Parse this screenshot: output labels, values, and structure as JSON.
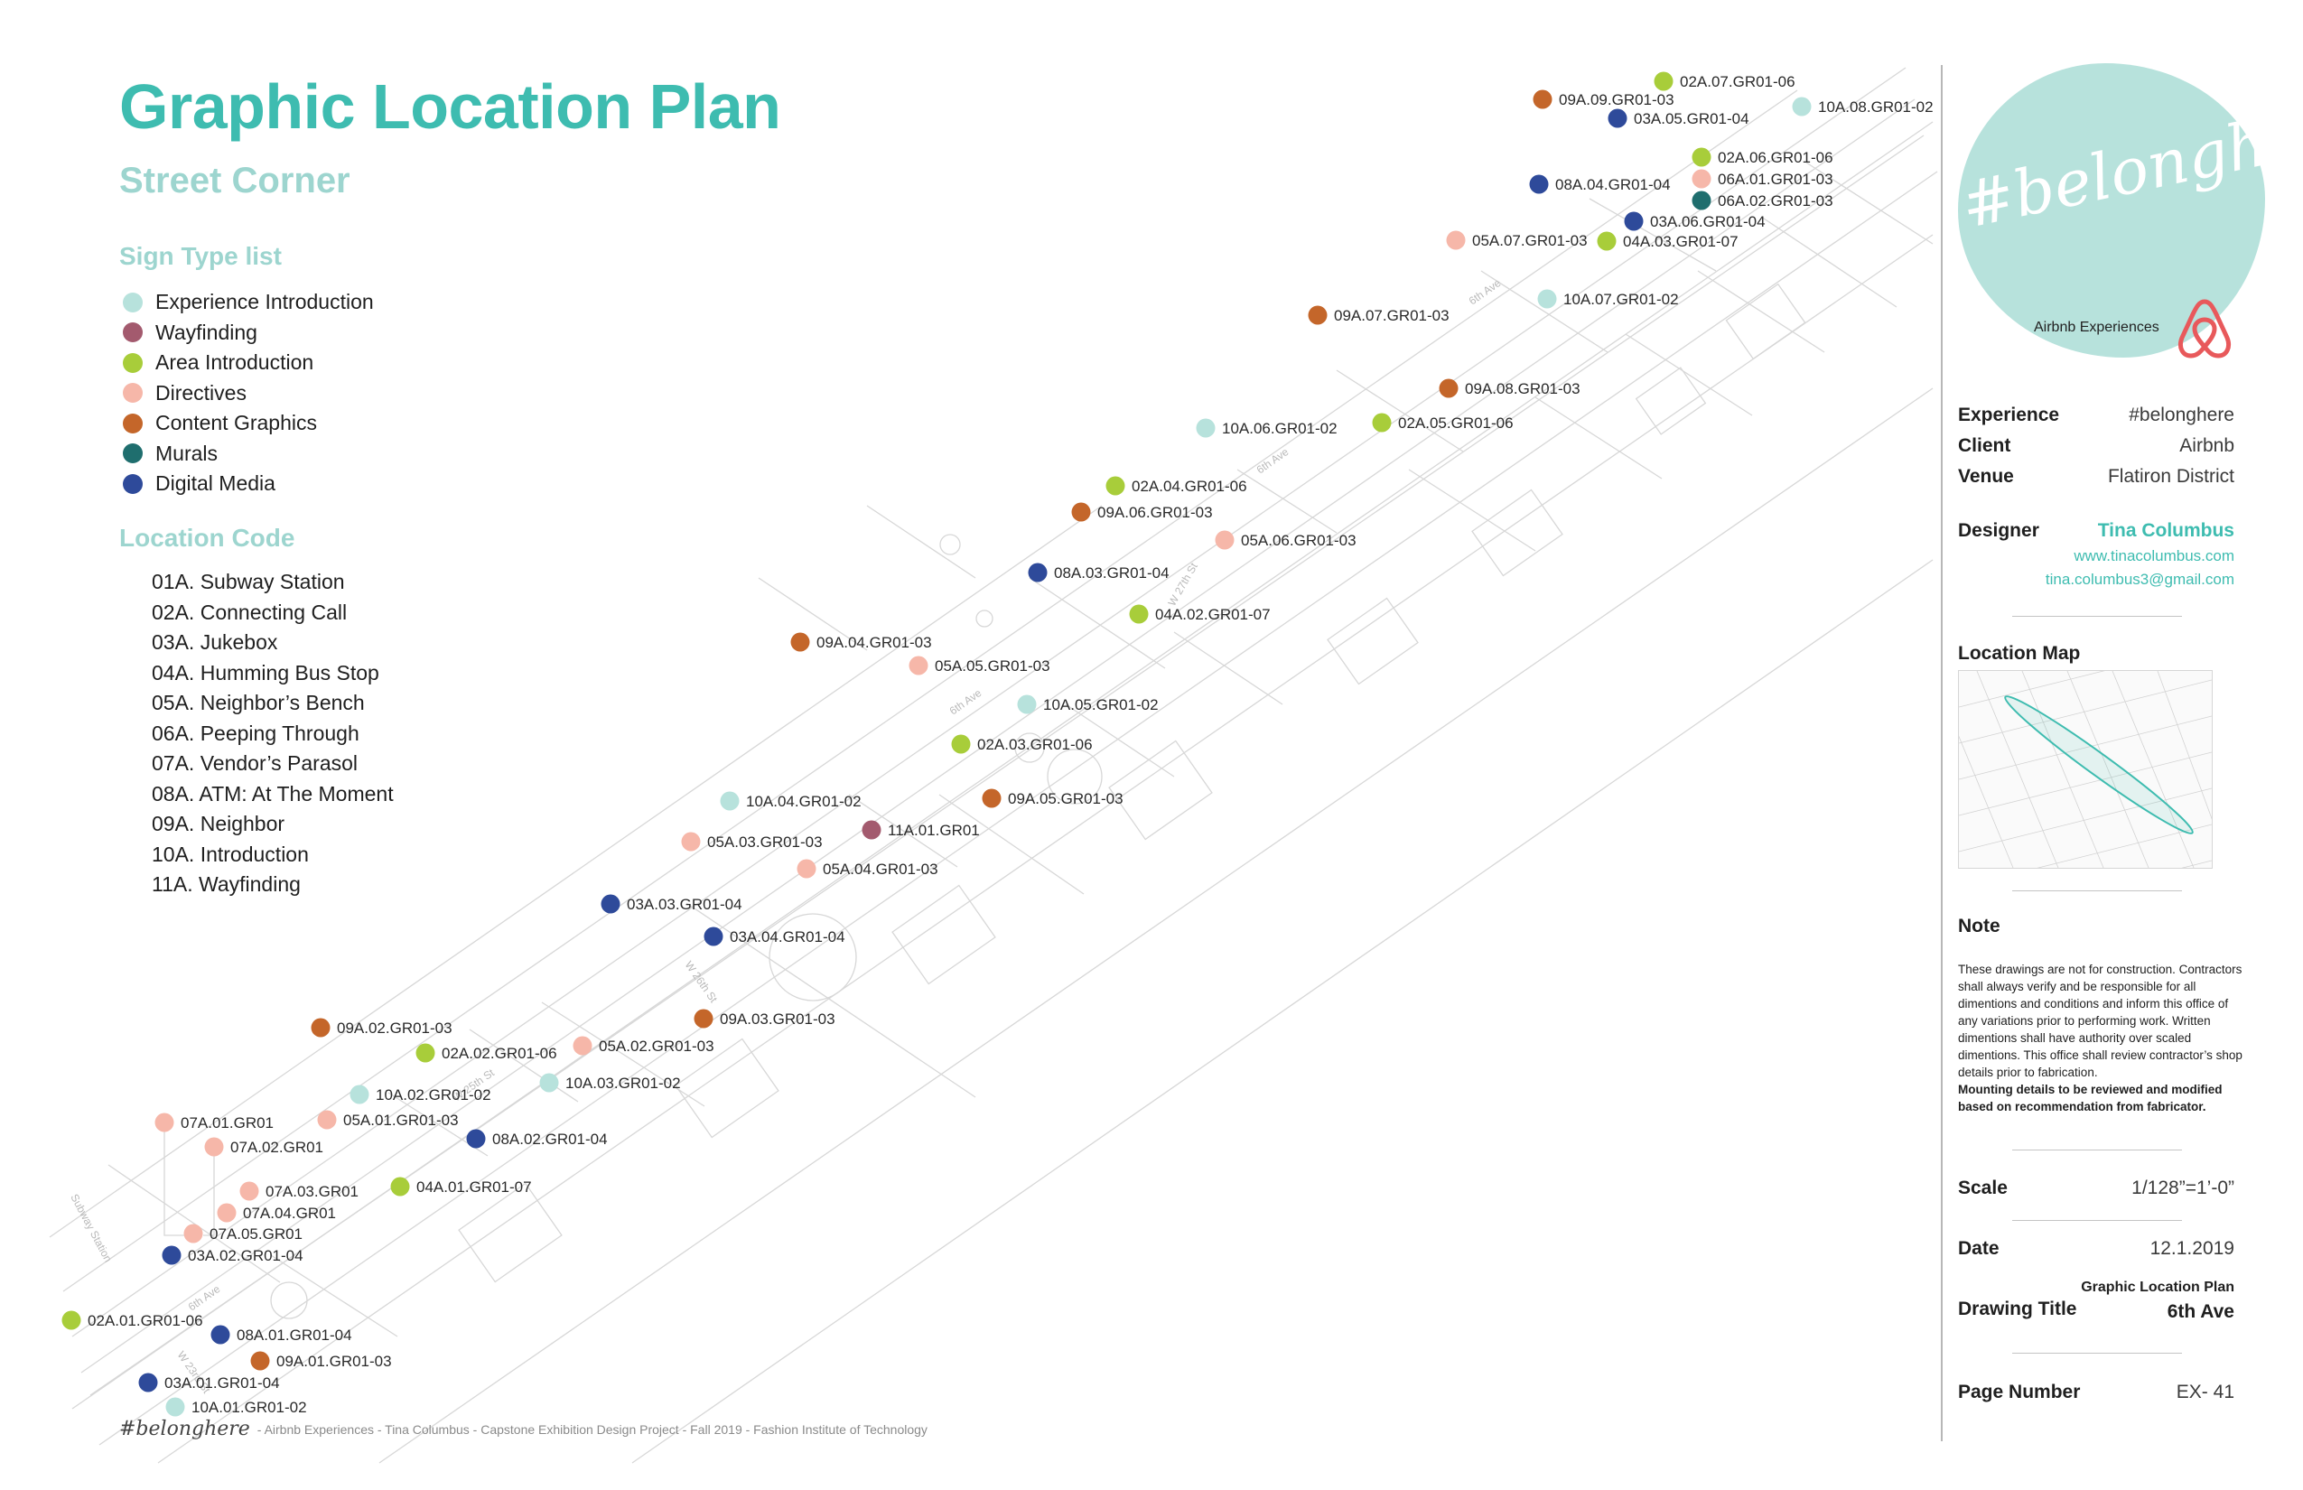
{
  "title": "Graphic Location Plan",
  "subtitle": "Street Corner",
  "sign_type_heading": "Sign Type list",
  "sign_types": [
    {
      "key": "EI",
      "label": "Experience Introduction",
      "color": "#b7e2dc"
    },
    {
      "key": "WF",
      "label": "Wayfinding",
      "color": "#a35a6e"
    },
    {
      "key": "AI",
      "label": "Area Introduction",
      "color": "#a8cd3a"
    },
    {
      "key": "DI",
      "label": "Directives",
      "color": "#f6b7a9"
    },
    {
      "key": "CG",
      "label": "Content Graphics",
      "color": "#c4662a"
    },
    {
      "key": "MU",
      "label": "Murals",
      "color": "#1f6e6e"
    },
    {
      "key": "DM",
      "label": "Digital Media",
      "color": "#2e4a9a"
    }
  ],
  "location_code_heading": "Location Code",
  "location_codes": [
    "01A. Subway Station",
    "02A. Connecting Call",
    "03A. Jukebox",
    "04A. Humming Bus Stop",
    "05A. Neighbor’s Bench",
    "06A. Peeping Through",
    "07A. Vendor’s Parasol",
    "08A. ATM: At The Moment",
    "09A. Neighbor",
    "10A. Introduction",
    "11A. Wayfinding"
  ],
  "street_labels": [
    "6th Ave",
    "6th Ave",
    "6th Ave",
    "6th Ave",
    "W 27th St",
    "W 26th St",
    "W 25th St",
    "W 23rd St",
    "Subway Station"
  ],
  "markers": [
    {
      "code": "02A.07.GR01-06",
      "type": "AI"
    },
    {
      "code": "09A.09.GR01-03",
      "type": "CG"
    },
    {
      "code": "03A.05.GR01-04",
      "type": "DM"
    },
    {
      "code": "10A.08.GR01-02",
      "type": "EI"
    },
    {
      "code": "02A.06.GR01-06",
      "type": "AI"
    },
    {
      "code": "06A.01.GR01-03",
      "type": "DI"
    },
    {
      "code": "06A.02.GR01-03",
      "type": "MU"
    },
    {
      "code": "08A.04.GR01-04",
      "type": "DM"
    },
    {
      "code": "03A.06.GR01-04",
      "type": "DM"
    },
    {
      "code": "05A.07.GR01-03",
      "type": "DI"
    },
    {
      "code": "04A.03.GR01-07",
      "type": "AI"
    },
    {
      "code": "10A.07.GR01-02",
      "type": "EI"
    },
    {
      "code": "09A.07.GR01-03",
      "type": "CG"
    },
    {
      "code": "09A.08.GR01-03",
      "type": "CG"
    },
    {
      "code": "10A.06.GR01-02",
      "type": "EI"
    },
    {
      "code": "02A.05.GR01-06",
      "type": "AI"
    },
    {
      "code": "02A.04.GR01-06",
      "type": "AI"
    },
    {
      "code": "09A.06.GR01-03",
      "type": "CG"
    },
    {
      "code": "05A.06.GR01-03",
      "type": "DI"
    },
    {
      "code": "08A.03.GR01-04",
      "type": "DM"
    },
    {
      "code": "04A.02.GR01-07",
      "type": "AI"
    },
    {
      "code": "09A.04.GR01-03",
      "type": "CG"
    },
    {
      "code": "05A.05.GR01-03",
      "type": "DI"
    },
    {
      "code": "10A.05.GR01-02",
      "type": "EI"
    },
    {
      "code": "02A.03.GR01-06",
      "type": "AI"
    },
    {
      "code": "09A.05.GR01-03",
      "type": "CG"
    },
    {
      "code": "10A.04.GR01-02",
      "type": "EI"
    },
    {
      "code": "11A.01.GR01",
      "type": "WF"
    },
    {
      "code": "05A.03.GR01-03",
      "type": "DI"
    },
    {
      "code": "05A.04.GR01-03",
      "type": "DI"
    },
    {
      "code": "03A.03.GR01-04",
      "type": "DM"
    },
    {
      "code": "03A.04.GR01-04",
      "type": "DM"
    },
    {
      "code": "09A.03.GR01-03",
      "type": "CG"
    },
    {
      "code": "09A.02.GR01-03",
      "type": "CG"
    },
    {
      "code": "02A.02.GR01-06",
      "type": "AI"
    },
    {
      "code": "05A.02.GR01-03",
      "type": "DI"
    },
    {
      "code": "10A.03.GR01-02",
      "type": "EI"
    },
    {
      "code": "10A.02.GR01-02",
      "type": "EI"
    },
    {
      "code": "05A.01.GR01-03",
      "type": "DI"
    },
    {
      "code": "08A.02.GR01-04",
      "type": "DM"
    },
    {
      "code": "07A.01.GR01",
      "type": "DI"
    },
    {
      "code": "07A.02.GR01",
      "type": "DI"
    },
    {
      "code": "07A.03.GR01",
      "type": "DI"
    },
    {
      "code": "07A.04.GR01",
      "type": "DI"
    },
    {
      "code": "07A.05.GR01",
      "type": "DI"
    },
    {
      "code": "04A.01.GR01-07",
      "type": "AI"
    },
    {
      "code": "03A.02.GR01-04",
      "type": "DM"
    },
    {
      "code": "02A.01.GR01-06",
      "type": "AI"
    },
    {
      "code": "08A.01.GR01-04",
      "type": "DM"
    },
    {
      "code": "09A.01.GR01-03",
      "type": "CG"
    },
    {
      "code": "03A.01.GR01-04",
      "type": "DM"
    },
    {
      "code": "10A.01.GR01-02",
      "type": "EI"
    }
  ],
  "footer": {
    "logo": "#belonghere",
    "text": "- Airbnb Experiences - Tina Columbus - Capstone Exhibition Design Project - Fall 2019 - Fashion Institute of Technology"
  },
  "sidebar": {
    "badge_text": "#belonghere",
    "badge_sub": "Airbnb Experiences",
    "badge_color": "#b7e2dc",
    "logo_icon": "airbnb-icon",
    "logo_color": "#e8595b",
    "experience_label": "Experience",
    "experience_value": "#belonghere",
    "client_label": "Client",
    "client_value": "Airbnb",
    "venue_label": "Venue",
    "venue_value": "Flatiron District",
    "designer_label": "Designer",
    "designer_value": "Tina Columbus",
    "website": "www.tinacolumbus.com",
    "email": "tina.columbus3@gmail.com",
    "location_map_label": "Location Map",
    "note_label": "Note",
    "note_text": "These drawings are not for construction. Contractors shall always verify and be responsible for all dimentions and conditions and inform this office of any variations prior to performing work. Written dimentions shall have authority over scaled dimentions. This office shall review contractor’s shop details prior to fabrication.",
    "note_bold": "Mounting details to be reviewed and modified based on recommendation from fabricator.",
    "scale_label": "Scale",
    "scale_value": "1/128”=1’-0”",
    "date_label": "Date",
    "date_value": "12.1.2019",
    "drawing_title_label": "Drawing Title",
    "drawing_title_line1": "Graphic Location Plan",
    "drawing_title_line2": "6th Ave",
    "page_number_label": "Page Number",
    "page_number_value": "EX- 41"
  },
  "accent_color": "#3ebcb0"
}
